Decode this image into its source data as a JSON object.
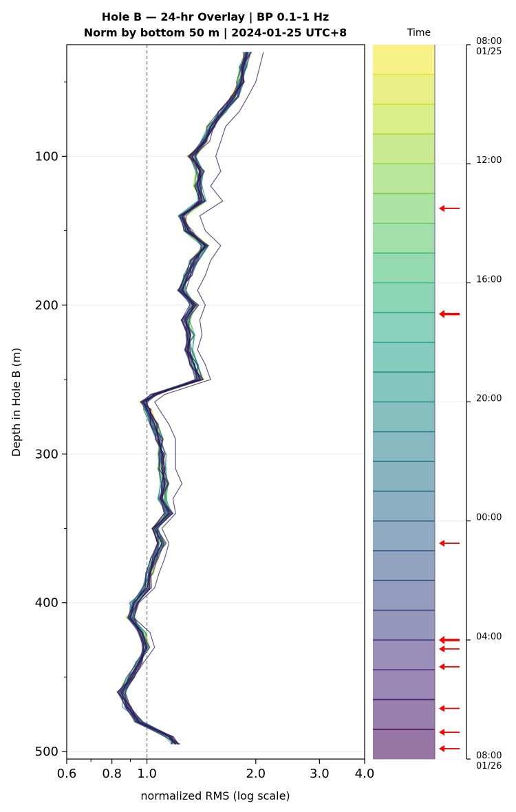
{
  "chart_data": {
    "type": "line",
    "title_line1": "Hole B — 24-hr Overlay  |  BP 0.1–1 Hz",
    "title_line2": "Norm by bottom 50 m  |  2024-01-25 UTC+8",
    "xlabel": "normalized RMS  (log scale)",
    "ylabel": "Depth in Hole B (m)",
    "x_scale": "log",
    "xlim": [
      0.6,
      4.0
    ],
    "ylim": [
      505,
      25
    ],
    "x_ticks": [
      {
        "value": 0.6,
        "label": "0.6"
      },
      {
        "value": 0.8,
        "label": "0.8"
      },
      {
        "value": 1.0,
        "label": "1.0"
      },
      {
        "value": 2.0,
        "label": "2.0"
      },
      {
        "value": 3.0,
        "label": "3.0"
      },
      {
        "value": 4.0,
        "label": "4.0"
      }
    ],
    "y_ticks": [
      {
        "value": 100,
        "label": "100"
      },
      {
        "value": 200,
        "label": "200"
      },
      {
        "value": 300,
        "label": "300"
      },
      {
        "value": 400,
        "label": "400"
      },
      {
        "value": 500,
        "label": "500"
      }
    ],
    "grid": "horizontal",
    "reference_line_x": 1.0,
    "profile_depths": [
      30,
      40,
      50,
      60,
      70,
      80,
      90,
      100,
      110,
      120,
      130,
      140,
      150,
      160,
      170,
      180,
      190,
      200,
      210,
      220,
      230,
      240,
      250,
      260,
      265,
      270,
      280,
      290,
      300,
      310,
      320,
      330,
      340,
      350,
      360,
      370,
      380,
      390,
      400,
      410,
      420,
      430,
      440,
      450,
      460,
      470,
      480,
      490,
      495
    ],
    "profile_values": [
      1.9,
      1.85,
      1.82,
      1.75,
      1.62,
      1.5,
      1.45,
      1.33,
      1.4,
      1.38,
      1.42,
      1.25,
      1.3,
      1.45,
      1.35,
      1.3,
      1.25,
      1.35,
      1.28,
      1.32,
      1.3,
      1.35,
      1.4,
      1.05,
      0.98,
      1.0,
      1.05,
      1.08,
      1.1,
      1.1,
      1.12,
      1.1,
      1.15,
      1.05,
      1.1,
      1.05,
      1.02,
      1.0,
      0.92,
      0.9,
      0.97,
      1.0,
      0.95,
      0.9,
      0.85,
      0.88,
      0.95,
      1.15,
      1.2
    ],
    "outlier_values": [
      2.1,
      2.05,
      2.0,
      1.9,
      1.8,
      1.65,
      1.6,
      1.55,
      1.6,
      1.5,
      1.62,
      1.4,
      1.45,
      1.6,
      1.5,
      1.45,
      1.38,
      1.45,
      1.4,
      1.42,
      1.38,
      1.45,
      1.5,
      1.12,
      1.05,
      1.08,
      1.15,
      1.2,
      1.2,
      1.2,
      1.25,
      1.18,
      1.2,
      1.1,
      1.15,
      1.12,
      1.08,
      1.05,
      0.95,
      0.92,
      1.02,
      1.05,
      0.98,
      0.92,
      0.87,
      0.9,
      0.97,
      1.15,
      1.22
    ],
    "series_count": 24,
    "colormap": [
      "#440154",
      "#482878",
      "#3e4989",
      "#31688e",
      "#26828e",
      "#1f9e89",
      "#35b779",
      "#6ece58",
      "#b5de2b",
      "#fde725"
    ],
    "colorbar": {
      "title": "Time",
      "segments": 24,
      "tick_labels": [
        {
          "hour": 0,
          "line1": "08:00",
          "line2": "01/25"
        },
        {
          "hour": 4,
          "line1": "12:00",
          "line2": ""
        },
        {
          "hour": 8,
          "line1": "16:00",
          "line2": ""
        },
        {
          "hour": 12,
          "line1": "20:00",
          "line2": ""
        },
        {
          "hour": 16,
          "line1": "00:00",
          "line2": ""
        },
        {
          "hour": 20,
          "line1": "04:00",
          "line2": ""
        },
        {
          "hour": 24,
          "line1": "08:00",
          "line2": "01/26"
        }
      ],
      "event_marker_color": "#ff0000",
      "event_markers": [
        {
          "hour": 5.5,
          "bold": false
        },
        {
          "hour": 9.05,
          "bold": true
        },
        {
          "hour": 16.75,
          "bold": false
        },
        {
          "hour": 20.0,
          "bold": true
        },
        {
          "hour": 20.3,
          "bold": false
        },
        {
          "hour": 20.9,
          "bold": false
        },
        {
          "hour": 22.3,
          "bold": false
        },
        {
          "hour": 23.1,
          "bold": false
        },
        {
          "hour": 23.65,
          "bold": false
        }
      ]
    }
  }
}
